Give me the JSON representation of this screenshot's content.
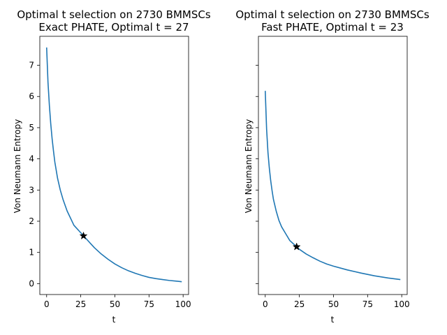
{
  "chart_data": [
    {
      "type": "line",
      "title": "Optimal t selection on 2730 BMMSCs",
      "subtitle": "Exact PHATE, Optimal t = 27",
      "xlabel": "t",
      "ylabel": "Von Neumann Entropy",
      "xlim": [
        -5,
        104
      ],
      "ylim": [
        -0.35,
        7.93
      ],
      "xticks": [
        0,
        25,
        50,
        75,
        100
      ],
      "yticks": [
        0,
        1,
        2,
        3,
        4,
        5,
        6,
        7
      ],
      "show_ytick_labels": true,
      "series": [
        {
          "color": "#1f77b4",
          "x": [
            0,
            1,
            2,
            3,
            4,
            5,
            6,
            8,
            10,
            12,
            15,
            20,
            25,
            27,
            30,
            35,
            40,
            45,
            50,
            55,
            60,
            65,
            70,
            75,
            80,
            85,
            90,
            95,
            99
          ],
          "y": [
            7.57,
            6.45,
            5.72,
            5.13,
            4.65,
            4.26,
            3.9,
            3.38,
            3.0,
            2.7,
            2.33,
            1.87,
            1.63,
            1.53,
            1.39,
            1.15,
            0.95,
            0.78,
            0.63,
            0.51,
            0.41,
            0.33,
            0.26,
            0.2,
            0.16,
            0.13,
            0.1,
            0.08,
            0.06
          ]
        }
      ],
      "marker": {
        "x": 27,
        "y": 1.53,
        "symbol": "star",
        "color": "#000000"
      }
    },
    {
      "type": "line",
      "title": "Optimal t selection on 2730 BMMSCs",
      "subtitle": "Fast PHATE, Optimal t = 23",
      "xlabel": "t",
      "ylabel": "Von Neumann Entropy",
      "xlim": [
        -5,
        104
      ],
      "ylim": [
        -0.35,
        7.93
      ],
      "xticks": [
        0,
        25,
        50,
        75,
        100
      ],
      "yticks": [
        0,
        1,
        2,
        3,
        4,
        5,
        6,
        7
      ],
      "show_ytick_labels": false,
      "series": [
        {
          "color": "#1f77b4",
          "x": [
            0,
            1,
            2,
            3,
            4,
            5,
            6,
            8,
            10,
            12,
            15,
            18,
            20,
            23,
            25,
            30,
            35,
            40,
            45,
            50,
            60,
            70,
            80,
            90,
            99
          ],
          "y": [
            6.18,
            4.95,
            4.2,
            3.7,
            3.3,
            2.98,
            2.7,
            2.33,
            2.03,
            1.82,
            1.6,
            1.38,
            1.3,
            1.18,
            1.1,
            0.95,
            0.83,
            0.72,
            0.63,
            0.56,
            0.44,
            0.34,
            0.25,
            0.18,
            0.13
          ]
        }
      ],
      "marker": {
        "x": 23,
        "y": 1.18,
        "symbol": "star",
        "color": "#000000"
      }
    }
  ]
}
